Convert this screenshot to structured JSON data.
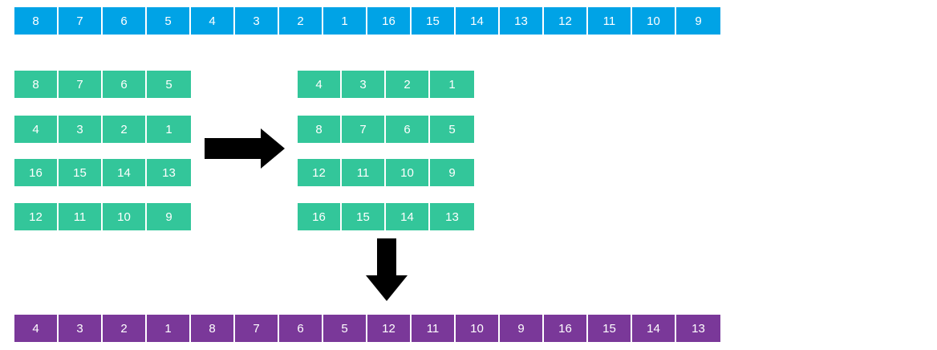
{
  "top_row": [
    "8",
    "7",
    "6",
    "5",
    "4",
    "3",
    "2",
    "1",
    "16",
    "15",
    "14",
    "13",
    "12",
    "11",
    "10",
    "9"
  ],
  "left_groups": [
    [
      "8",
      "7",
      "6",
      "5"
    ],
    [
      "4",
      "3",
      "2",
      "1"
    ],
    [
      "16",
      "15",
      "14",
      "13"
    ],
    [
      "12",
      "11",
      "10",
      "9"
    ]
  ],
  "right_groups": [
    [
      "4",
      "3",
      "2",
      "1"
    ],
    [
      "8",
      "7",
      "6",
      "5"
    ],
    [
      "12",
      "11",
      "10",
      "9"
    ],
    [
      "16",
      "15",
      "14",
      "13"
    ]
  ],
  "bottom_row": [
    "4",
    "3",
    "2",
    "1",
    "8",
    "7",
    "6",
    "5",
    "12",
    "11",
    "10",
    "9",
    "16",
    "15",
    "14",
    "13"
  ],
  "arrows": {
    "right_icon": "arrow-right-icon",
    "down_icon": "arrow-down-icon",
    "color": "#000000"
  },
  "colors": {
    "top_row": "#00a3e6",
    "groups": "#33c69a",
    "bottom_row": "#7a3899"
  }
}
